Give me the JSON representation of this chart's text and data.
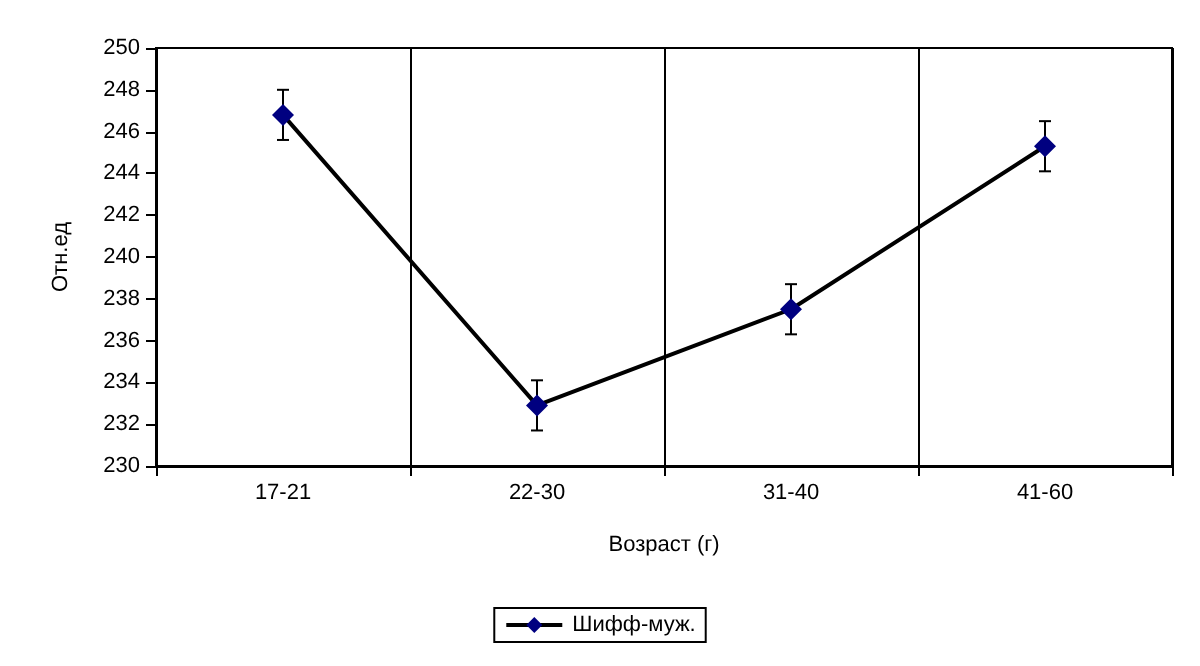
{
  "chart_data": {
    "type": "line",
    "xlabel": "Возраст (г)",
    "ylabel": "Отн.ед",
    "categories": [
      "17-21",
      "22-30",
      "31-40",
      "41-60"
    ],
    "series": [
      {
        "name": "Шифф-муж.",
        "color": "#000080",
        "values": [
          246.8,
          232.9,
          237.5,
          245.3
        ],
        "errors": [
          1.2,
          1.2,
          1.2,
          1.2
        ]
      }
    ],
    "ylim": [
      230,
      250
    ],
    "yticks": [
      230,
      232,
      234,
      236,
      238,
      240,
      242,
      244,
      246,
      248,
      250
    ],
    "grid": "x",
    "legend": "bottom",
    "marker": "diamond",
    "line_style": "solid"
  }
}
